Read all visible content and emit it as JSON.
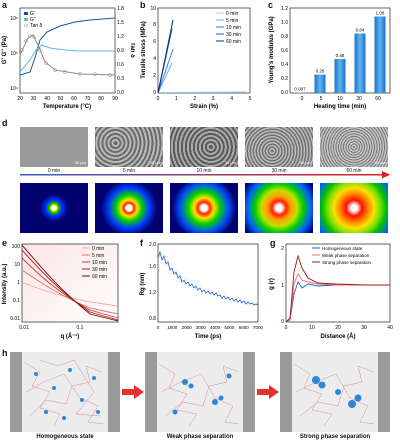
{
  "panel_labels": [
    "a",
    "b",
    "c",
    "d",
    "e",
    "f",
    "g",
    "h"
  ],
  "panel_a": {
    "xlabel": "Temperature (°C)",
    "ylabel_left": "G' G'' (Pa)",
    "ylabel_right": "Tan δ",
    "x_ticks": [
      "20",
      "30",
      "40",
      "50",
      "60",
      "70",
      "80",
      "90"
    ],
    "y_left_ticks": [
      "10⁴",
      "10⁵",
      "10⁶"
    ],
    "y_right_ticks": [
      "0.0",
      "0.3",
      "0.6",
      "0.9",
      "1.2",
      "1.5",
      "1.8"
    ],
    "legend": [
      "G'",
      "G''",
      "Tan δ"
    ]
  },
  "panel_b": {
    "xlabel": "Strain (%)",
    "ylabel": "Tensile stress (MPa)",
    "x_ticks": [
      "0",
      "1",
      "2",
      "3",
      "4",
      "5"
    ],
    "y_ticks": [
      "0",
      "2",
      "4",
      "6",
      "8",
      "10"
    ],
    "legend": [
      "0 min",
      "5 min",
      "10 min",
      "30 min",
      "60 min"
    ]
  },
  "panel_c": {
    "xlabel": "Heating time (min)",
    "ylabel": "Young's modulus (GPa)",
    "x_ticks": [
      "0",
      "5",
      "10",
      "30",
      "60"
    ],
    "y_ticks": [
      "0.0",
      "0.2",
      "0.4",
      "0.6",
      "0.8",
      "1.0",
      "1.2"
    ],
    "values": [
      "0.007",
      "0.26",
      "0.48",
      "0.84",
      "1.08"
    ]
  },
  "panel_d": {
    "scalebar": "30 μm",
    "times": [
      "0 min",
      "5 min",
      "10 min",
      "30 min",
      "60 min"
    ]
  },
  "panel_e": {
    "xlabel": "q (Å⁻¹)",
    "ylabel": "Intensity (a.u.)",
    "x_ticks": [
      "0.01",
      "0.1"
    ],
    "y_ticks": [
      "0.01",
      "0.1",
      "1",
      "10",
      "100"
    ],
    "legend": [
      "0 min",
      "5 min",
      "10 min",
      "30 min",
      "60 min"
    ]
  },
  "panel_f": {
    "xlabel": "Time (ps)",
    "ylabel": "Rg (nm)",
    "x_ticks": [
      "0",
      "1000",
      "2000",
      "3000",
      "4000",
      "5000",
      "6000",
      "7000"
    ],
    "y_ticks": [
      "0.8",
      "1.2",
      "1.6",
      "2.0"
    ]
  },
  "panel_g": {
    "xlabel": "Distance (Å)",
    "ylabel": "g (r)",
    "x_ticks": [
      "0",
      "10",
      "20",
      "30",
      "40"
    ],
    "y_ticks": [
      "0",
      "1",
      "2"
    ],
    "legend": [
      "Homogeneous state",
      "Weak phase separation",
      "Strong phase separation"
    ]
  },
  "panel_h": {
    "captions": [
      "Homogeneous state",
      "Weak phase separation",
      "Strong phase separation"
    ]
  },
  "colors": {
    "blue_dark": "#1f4e9c",
    "blue_light": "#5fb5f0",
    "red_dark": "#9c1b1b",
    "red_light": "#f06a6a"
  },
  "chart_data": [
    {
      "type": "line",
      "panel": "a",
      "xlabel": "Temperature (°C)",
      "ylabel": "G' G'' (Pa)",
      "y2label": "Tan δ",
      "xlim": [
        20,
        90
      ],
      "ylim": [
        10000,
        2000000
      ],
      "y_scale": "log",
      "y2lim": [
        0,
        1.8
      ],
      "series": [
        {
          "name": "G'",
          "x": [
            20,
            30,
            35,
            40,
            45,
            50,
            60,
            70,
            80,
            90
          ],
          "y": [
            12000,
            15000,
            60000,
            250000,
            500000,
            700000,
            900000,
            1050000,
            1150000,
            1250000
          ]
        },
        {
          "name": "G''",
          "x": [
            20,
            30,
            35,
            40,
            45,
            50,
            60,
            70,
            80,
            90
          ],
          "y": [
            13000,
            25000,
            80000,
            150000,
            110000,
            90000,
            85000,
            82000,
            80000,
            80000
          ]
        },
        {
          "name": "Tan δ",
          "x": [
            20,
            30,
            35,
            40,
            45,
            50,
            60,
            70,
            80,
            90
          ],
          "y": [
            1.1,
            1.4,
            1.1,
            0.55,
            0.25,
            0.15,
            0.1,
            0.09,
            0.08,
            0.08
          ]
        }
      ]
    },
    {
      "type": "line",
      "panel": "b",
      "xlabel": "Strain (%)",
      "ylabel": "Tensile stress (MPa)",
      "xlim": [
        0,
        5
      ],
      "ylim": [
        0,
        10
      ],
      "series": [
        {
          "name": "0 min",
          "x": [
            0,
            4.8
          ],
          "y": [
            0,
            0.05
          ]
        },
        {
          "name": "5 min",
          "x": [
            0,
            0.8
          ],
          "y": [
            0,
            3.5
          ]
        },
        {
          "name": "10 min",
          "x": [
            0,
            0.85
          ],
          "y": [
            0,
            5.2
          ]
        },
        {
          "name": "30 min",
          "x": [
            0,
            0.8
          ],
          "y": [
            0,
            7.5
          ]
        },
        {
          "name": "60 min",
          "x": [
            0,
            0.85
          ],
          "y": [
            0,
            8.5
          ]
        }
      ]
    },
    {
      "type": "bar",
      "panel": "c",
      "categories": [
        "0",
        "5",
        "10",
        "30",
        "60"
      ],
      "values": [
        0.007,
        0.26,
        0.48,
        0.84,
        1.08
      ],
      "xlabel": "Heating time (min)",
      "ylabel": "Young's modulus (GPa)",
      "ylim": [
        0,
        1.2
      ]
    },
    {
      "type": "line",
      "panel": "e",
      "xlabel": "q (Å⁻¹)",
      "ylabel": "Intensity (a.u.)",
      "x_scale": "log",
      "y_scale": "log",
      "xlim": [
        0.01,
        0.3
      ],
      "ylim": [
        0.01,
        300
      ],
      "series": [
        {
          "name": "0 min",
          "x": [
            0.01,
            0.03,
            0.1,
            0.3
          ],
          "y": [
            2,
            1,
            0.5,
            0.3
          ]
        },
        {
          "name": "5 min",
          "x": [
            0.01,
            0.03,
            0.1,
            0.3
          ],
          "y": [
            10,
            2,
            0.4,
            0.1
          ]
        },
        {
          "name": "10 min",
          "x": [
            0.01,
            0.03,
            0.1,
            0.3
          ],
          "y": [
            40,
            5,
            0.4,
            0.06
          ]
        },
        {
          "name": "30 min",
          "x": [
            0.01,
            0.03,
            0.1,
            0.3
          ],
          "y": [
            120,
            12,
            0.6,
            0.04
          ]
        },
        {
          "name": "60 min",
          "x": [
            0.01,
            0.03,
            0.1,
            0.3
          ],
          "y": [
            250,
            30,
            1,
            0.03
          ]
        }
      ]
    },
    {
      "type": "line",
      "panel": "f",
      "xlabel": "Time (ps)",
      "ylabel": "Rg (nm)",
      "xlim": [
        0,
        7000
      ],
      "ylim": [
        0.8,
        2.0
      ],
      "series": [
        {
          "x": [
            0,
            500,
            1000,
            2000,
            3000,
            4000,
            5000,
            6000,
            7000
          ],
          "y": [
            1.8,
            1.6,
            1.4,
            1.3,
            1.2,
            1.15,
            1.1,
            1.05,
            1.0
          ]
        }
      ]
    },
    {
      "type": "line",
      "panel": "g",
      "xlabel": "Distance (Å)",
      "ylabel": "g (r)",
      "xlim": [
        0,
        40
      ],
      "ylim": [
        0,
        2
      ],
      "series": [
        {
          "name": "Homogeneous state",
          "x": [
            0,
            2,
            4,
            6,
            8,
            12,
            20,
            30,
            40
          ],
          "y": [
            0,
            0.1,
            0.9,
            1.2,
            1.05,
            1.0,
            1.0,
            1.0,
            1.0
          ]
        },
        {
          "name": "Weak phase separation",
          "x": [
            0,
            2,
            4,
            6,
            8,
            12,
            20,
            30,
            40
          ],
          "y": [
            0,
            0.1,
            1.2,
            1.45,
            1.2,
            1.05,
            1.0,
            1.0,
            1.0
          ]
        },
        {
          "name": "Strong phase separation",
          "x": [
            0,
            2,
            4,
            6,
            8,
            12,
            20,
            30,
            40
          ],
          "y": [
            0,
            0.15,
            1.5,
            1.7,
            1.3,
            1.1,
            1.0,
            1.0,
            1.0
          ]
        }
      ]
    }
  ]
}
